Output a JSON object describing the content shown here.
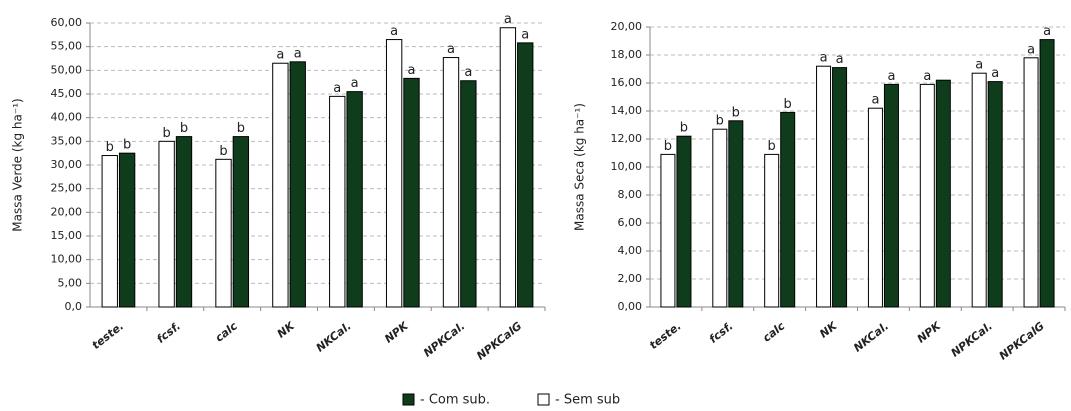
{
  "chart_data": [
    {
      "type": "bar",
      "ylabel": "Massa Verde (kg ha⁻¹)",
      "categories": [
        "teste.",
        "fcsf.",
        "calc",
        "NK",
        "NKCal.",
        "NPK",
        "NPKCal.",
        "NPKCalG"
      ],
      "series": [
        {
          "name": "- Sem sub",
          "color": "#ffffff",
          "values": [
            32,
            35,
            31.2,
            51.5,
            44.5,
            56.5,
            52.7,
            59
          ],
          "letters": [
            "b",
            "b",
            "b",
            "a",
            "a",
            "a",
            "a",
            "a"
          ]
        },
        {
          "name": "- Com sub.",
          "color": "#0f3d1c",
          "values": [
            32.5,
            36,
            36,
            51.8,
            45.5,
            48.3,
            47.8,
            55.8
          ],
          "letters": [
            "b",
            "b",
            "b",
            "a",
            "a",
            "a",
            "a",
            "a"
          ]
        }
      ],
      "ylim": [
        0,
        60
      ],
      "yticks": [
        {
          "value": 0,
          "label": "0,0"
        },
        {
          "value": 5,
          "label": "5,00"
        },
        {
          "value": 10,
          "label": "10,00"
        },
        {
          "value": 15,
          "label": "15,00"
        },
        {
          "value": 20,
          "label": "20,00"
        },
        {
          "value": 25,
          "label": "25,00"
        },
        {
          "value": 30,
          "label": "30,00"
        },
        {
          "value": 35,
          "label": "35,00"
        },
        {
          "value": 40,
          "label": "40,00"
        },
        {
          "value": 45,
          "label": "45,00"
        },
        {
          "value": 50,
          "label": "50,00"
        },
        {
          "value": 55,
          "label": "55,00"
        },
        {
          "value": 60,
          "label": "60,00"
        }
      ],
      "grid": true
    },
    {
      "type": "bar",
      "ylabel": "Massa Seca (kg ha⁻¹)",
      "categories": [
        "teste.",
        "fcsf.",
        "calc",
        "NK",
        "NKCal.",
        "NPK",
        "NPKCal.",
        "NPKCalG"
      ],
      "series": [
        {
          "name": "- Sem sub",
          "color": "#ffffff",
          "values": [
            10.9,
            12.7,
            10.9,
            17.2,
            14.2,
            15.9,
            16.7,
            17.8
          ],
          "letters": [
            "b",
            "b",
            "b",
            "a",
            "a",
            "a",
            "a",
            "a"
          ]
        },
        {
          "name": "- Com sub.",
          "color": "#0f3d1c",
          "values": [
            12.2,
            13.3,
            13.9,
            17.1,
            15.9,
            16.2,
            16.1,
            19.1
          ],
          "letters": [
            "b",
            "b",
            "b",
            "a",
            "a",
            null,
            "a",
            "a"
          ]
        }
      ],
      "ylim": [
        0,
        20
      ],
      "yticks": [
        {
          "value": 0,
          "label": "0,00"
        },
        {
          "value": 2,
          "label": "2,00"
        },
        {
          "value": 4,
          "label": "4,00"
        },
        {
          "value": 6,
          "label": "6,00"
        },
        {
          "value": 8,
          "label": "8,00"
        },
        {
          "value": 10,
          "label": "10,00"
        },
        {
          "value": 12,
          "label": "12,00"
        },
        {
          "value": 14,
          "label": "14,00"
        },
        {
          "value": 16,
          "label": "16,00"
        },
        {
          "value": 18,
          "label": "18,00"
        },
        {
          "value": 20,
          "label": "20,00"
        }
      ],
      "grid": true
    }
  ]
}
